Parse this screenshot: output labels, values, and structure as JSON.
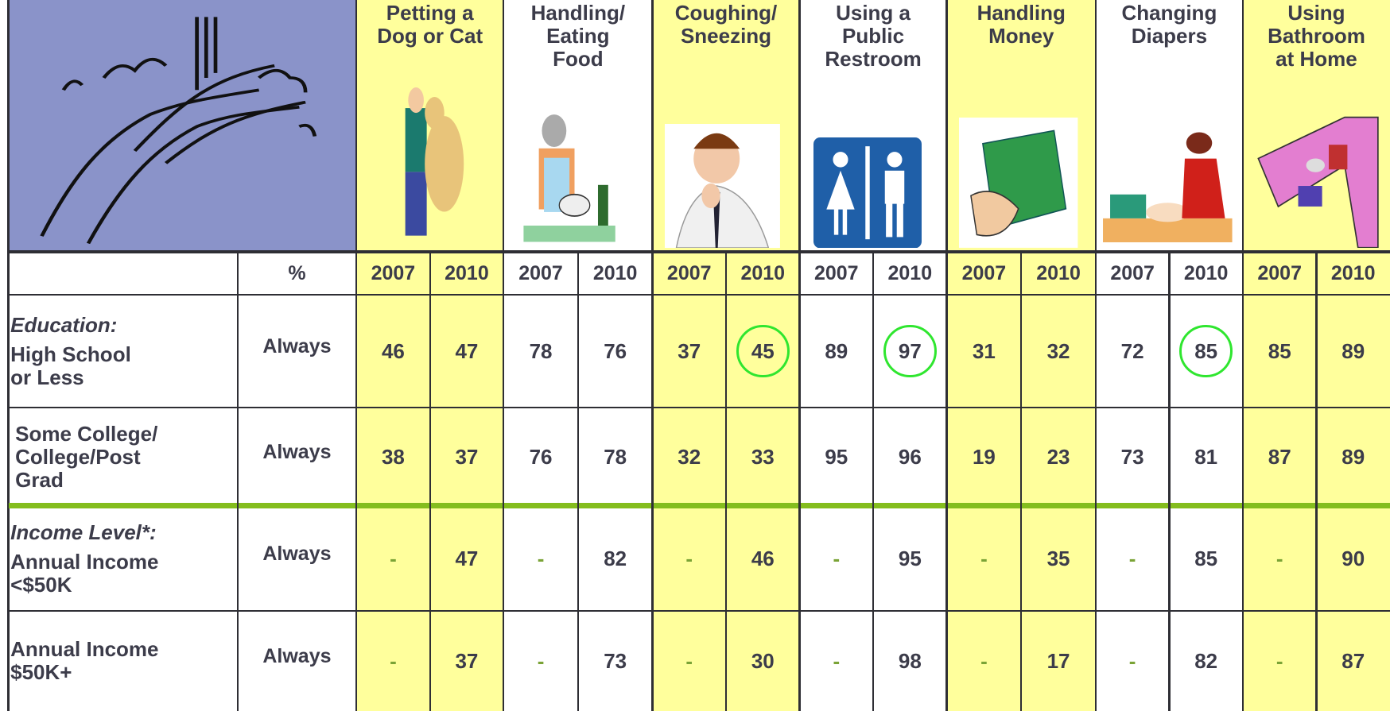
{
  "header": {
    "activities": [
      "Petting a\nDog or Cat",
      "Handling/\nEating\nFood",
      "Coughing/\nSneezing",
      "Using a\nPublic\nRestroom",
      "Handling\nMoney",
      "Changing\nDiapers",
      "Using\nBathroom\nat Home"
    ]
  },
  "table": {
    "percent_label": "%",
    "years": [
      "2007",
      "2010"
    ],
    "rows": [
      {
        "group": "Education:",
        "label": "High School\nor Less",
        "frequency": "Always",
        "values": [
          46,
          47,
          78,
          76,
          37,
          45,
          89,
          97,
          31,
          32,
          72,
          85,
          85,
          89
        ]
      },
      {
        "label": "Some College/\nCollege/Post\nGrad",
        "frequency": "Always",
        "values": [
          38,
          37,
          76,
          78,
          32,
          33,
          95,
          96,
          19,
          23,
          73,
          81,
          87,
          89
        ]
      },
      {
        "group": "Income Level*:",
        "label": "Annual Income\n<$50K",
        "frequency": "Always",
        "values": [
          "-",
          47,
          "-",
          82,
          "-",
          46,
          "-",
          95,
          "-",
          35,
          "-",
          85,
          "-",
          90
        ]
      },
      {
        "label": "Annual Income\n$50K+",
        "frequency": "Always",
        "values": [
          "-",
          37,
          "-",
          73,
          "-",
          30,
          "-",
          98,
          "-",
          17,
          "-",
          82,
          "-",
          87
        ]
      }
    ]
  }
}
